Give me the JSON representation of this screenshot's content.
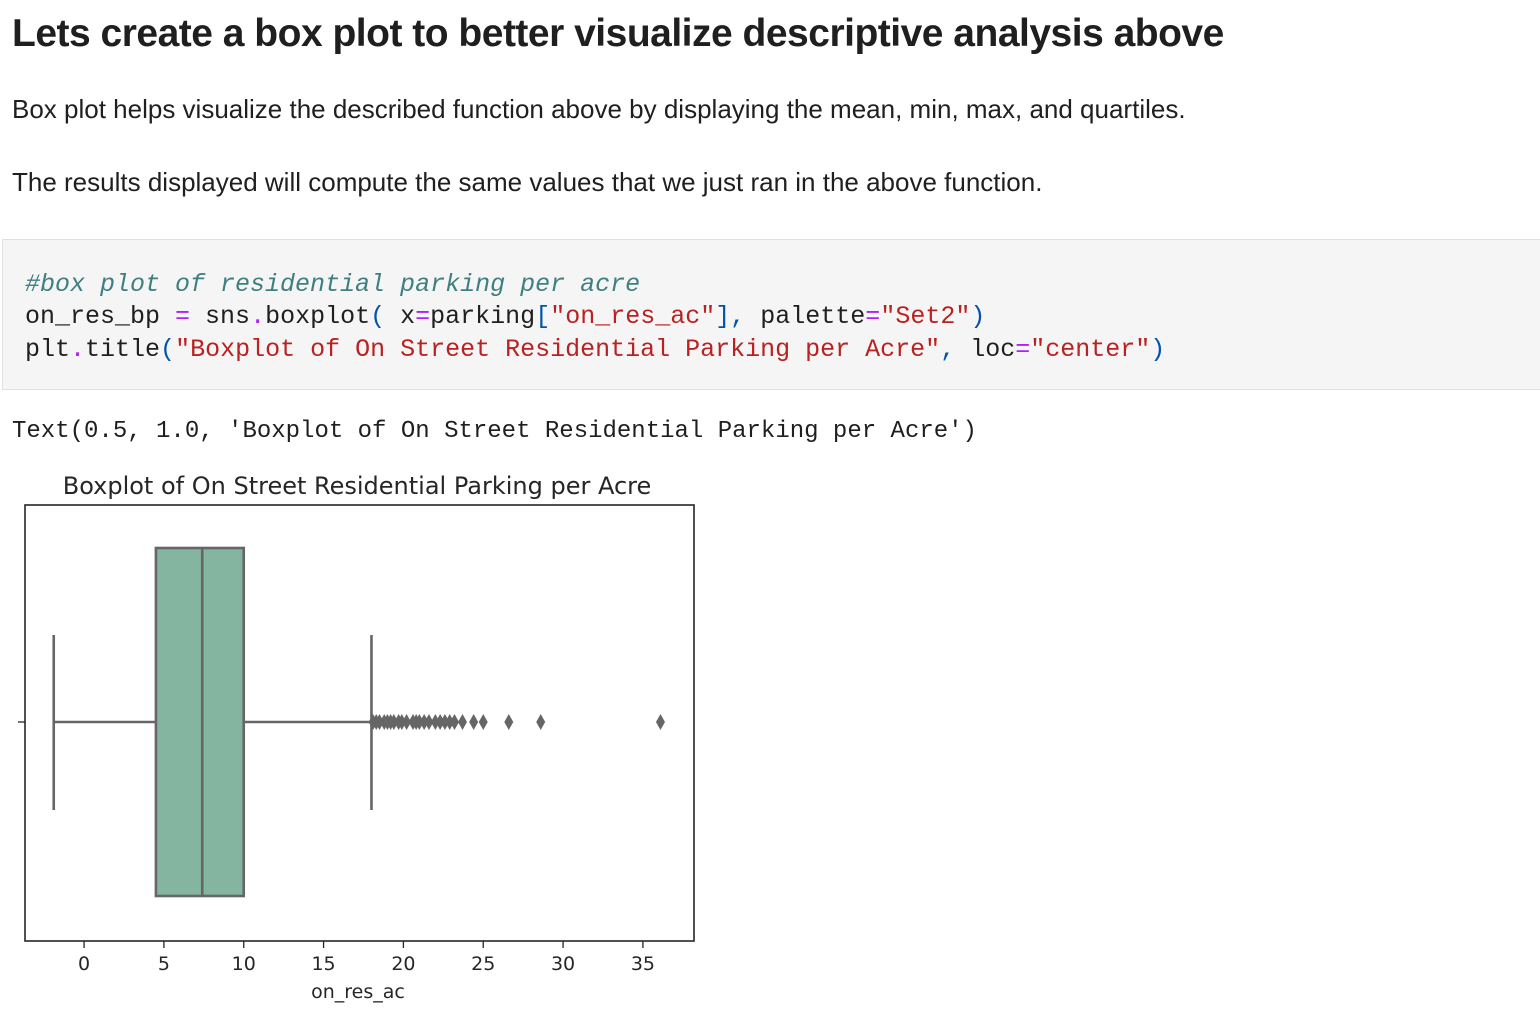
{
  "markdown": {
    "heading": "Lets create a box plot to better visualize descriptive analysis above",
    "paragraph_1": "Box plot helps visualize the described function above by displaying the mean, min, max, and quartiles.",
    "paragraph_2": "The results displayed will compute the same values that we just ran in the above function."
  },
  "code_cell": {
    "line_1": {
      "comment": "#box plot of residential parking per acre"
    },
    "line_2": {
      "var": "on_res_bp ",
      "eq": "=",
      "call": " sns",
      "dot": ".",
      "func": "boxplot",
      "open": "( ",
      "arg": "x",
      "eq2": "=",
      "obj": "parking",
      "lbr": "[",
      "key": "\"on_res_ac\"",
      "rbr": "]",
      "comma": ", ",
      "kw": "palette",
      "eq3": "=",
      "val": "\"Set2\"",
      "close": ")"
    },
    "line_3": {
      "mod": "plt",
      "dot": ".",
      "func": "title",
      "open": "(",
      "str": "\"Boxplot of On Street Residential Parking per Acre\"",
      "comma": ", ",
      "kw": "loc",
      "eq": "=",
      "val": "\"center\"",
      "close": ")"
    }
  },
  "output": {
    "text": "Text(0.5, 1.0, 'Boxplot of On Street Residential Parking per Acre')"
  },
  "chart_data": {
    "type": "box",
    "title": "Boxplot of On Street Residential Parking per Acre",
    "xlabel": "on_res_ac",
    "ylabel": "",
    "xlim": [
      -3.7,
      38.2
    ],
    "xticks": [
      0,
      5,
      10,
      15,
      20,
      25,
      30,
      35
    ],
    "grid": false,
    "box_color": "#83b5a0",
    "line_color": "#666666",
    "stats": {
      "whisker_low": -1.9,
      "q1": 4.5,
      "median": 7.4,
      "q3": 10.0,
      "whisker_high": 18.0
    },
    "outliers": [
      18.1,
      18.3,
      18.5,
      18.8,
      19.0,
      19.2,
      19.4,
      19.7,
      19.9,
      20.2,
      20.6,
      20.8,
      21.0,
      21.3,
      21.6,
      22.0,
      22.3,
      22.6,
      22.9,
      23.2,
      23.7,
      24.4,
      25.0,
      26.6,
      28.6,
      36.1
    ]
  }
}
